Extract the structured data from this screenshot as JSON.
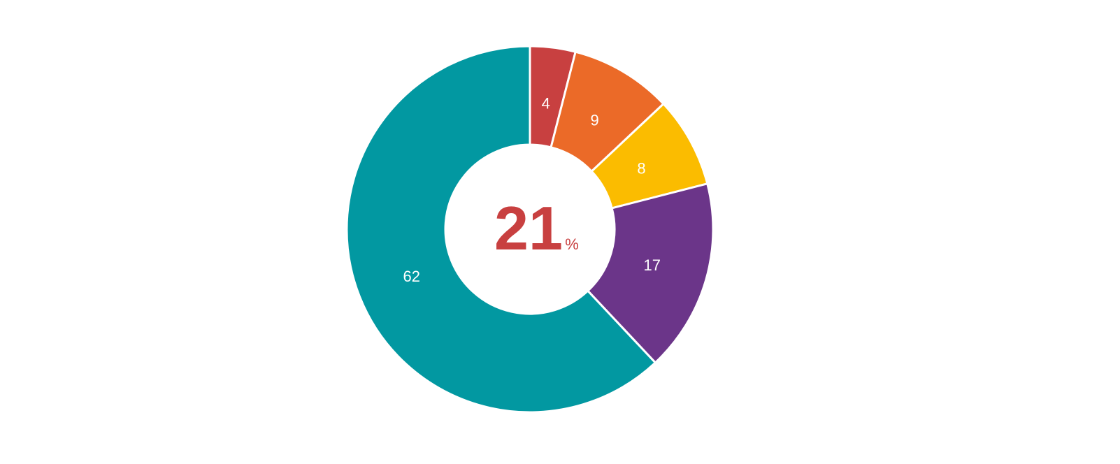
{
  "chart_data": {
    "type": "pie",
    "donut": true,
    "slices": [
      {
        "value": 4,
        "label": "4",
        "color": "#c84040"
      },
      {
        "value": 9,
        "label": "9",
        "color": "#eb6a28"
      },
      {
        "value": 8,
        "label": "8",
        "color": "#fbbc00"
      },
      {
        "value": 17,
        "label": "17",
        "color": "#6b3589"
      },
      {
        "value": 62,
        "label": "62",
        "color": "#0298a1"
      }
    ],
    "center": {
      "value": "21",
      "unit": "%",
      "color": "#c84040"
    },
    "legend": "none"
  }
}
